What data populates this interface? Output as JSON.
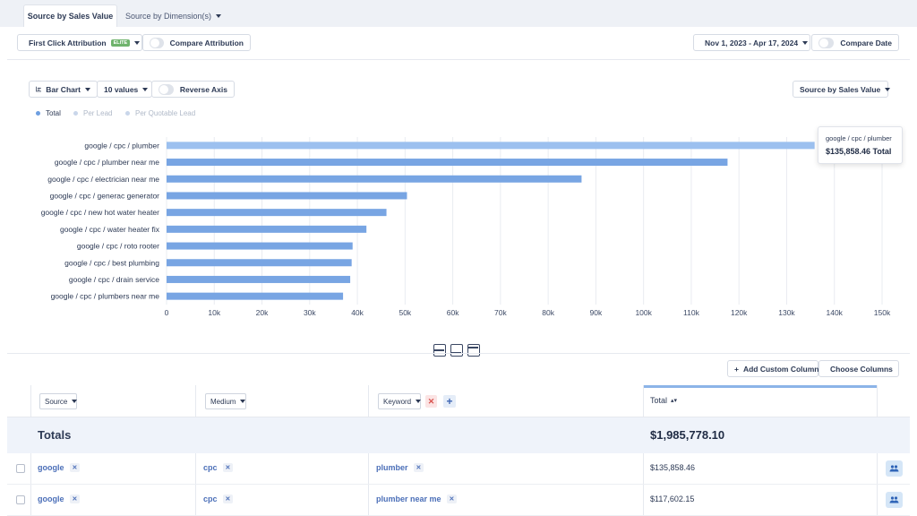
{
  "tabs": {
    "active": "Source by Sales Value",
    "second": "Source by Dimension(s)"
  },
  "toolbar": {
    "attribution": "First Click Attribution",
    "elite_badge": "ELITE",
    "compare_attribution": "Compare Attribution",
    "date_range": "Nov 1, 2023 - Apr 17, 2024",
    "compare_date": "Compare Date"
  },
  "chart_controls": {
    "chart_type": "Bar Chart",
    "values_count": "10 values",
    "reverse_axis": "Reverse Axis",
    "metric": "Source by Sales Value"
  },
  "legend": [
    {
      "label": "Total",
      "color": "#6e9fe0",
      "active": true
    },
    {
      "label": "Per Lead",
      "color": "#c9d6ea",
      "active": false
    },
    {
      "label": "Per Quotable Lead",
      "color": "#c9d6ea",
      "active": false
    }
  ],
  "chart_data": {
    "type": "bar",
    "orientation": "horizontal",
    "categories": [
      "google / cpc / plumber",
      "google / cpc / plumber near me",
      "google / cpc / electrician near me",
      "google / cpc / generac generator",
      "google / cpc / new hot water heater",
      "google / cpc / water heater fix",
      "google / cpc / roto rooter",
      "google / cpc / best plumbing",
      "google / cpc / drain service",
      "google / cpc / plumbers near me"
    ],
    "values": [
      135858.46,
      117602.15,
      87000,
      50400,
      46100,
      41900,
      39000,
      38800,
      38500,
      37000
    ],
    "xlim": [
      0,
      150000
    ],
    "xticks": [
      "0",
      "10k",
      "20k",
      "30k",
      "40k",
      "50k",
      "60k",
      "70k",
      "80k",
      "90k",
      "100k",
      "110k",
      "120k",
      "130k",
      "140k",
      "150k"
    ],
    "grid": true,
    "bar_color": "#78a5e3",
    "highlight_color": "#9cc0ef"
  },
  "tooltip": {
    "label": "google / cpc / plumber",
    "value": "$135,858.46 Total"
  },
  "table_actions": {
    "add_column": "Add Custom Column",
    "choose_columns": "Choose Columns"
  },
  "table": {
    "headers": {
      "source": "Source",
      "medium": "Medium",
      "keyword": "Keyword",
      "total": "Total"
    },
    "totals_label": "Totals",
    "totals_value": "$1,985,778.10",
    "rows": [
      {
        "source": "google",
        "medium": "cpc",
        "keyword": "plumber",
        "total": "$135,858.46"
      },
      {
        "source": "google",
        "medium": "cpc",
        "keyword": "plumber near me",
        "total": "$117,602.15"
      }
    ]
  }
}
